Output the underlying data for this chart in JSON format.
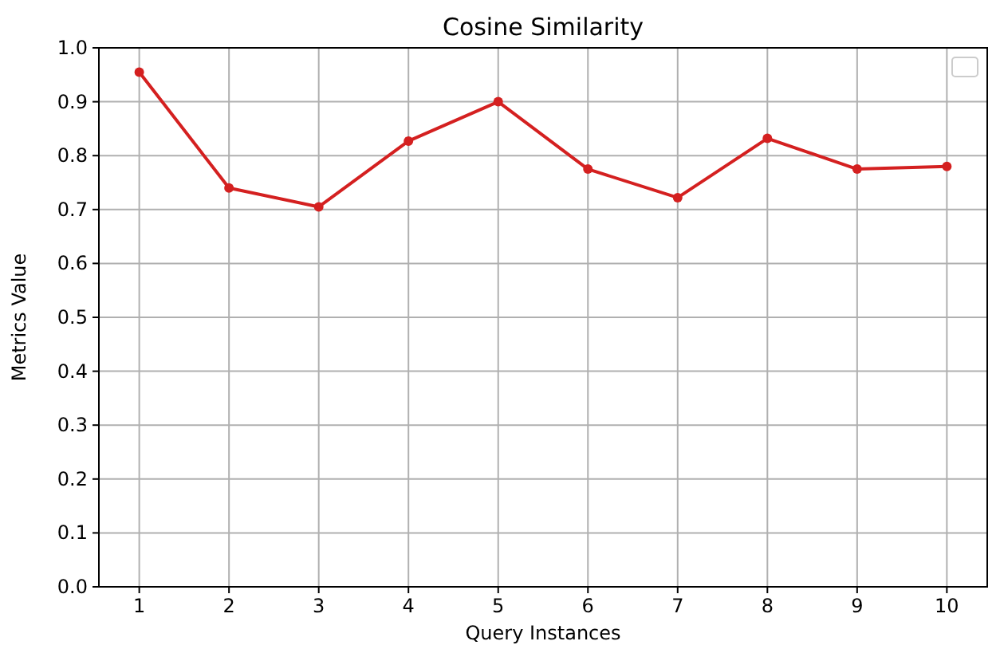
{
  "chart_data": {
    "type": "line",
    "title": "Cosine Similarity",
    "xlabel": "Query Instances",
    "ylabel": "Metrics Value",
    "x": [
      1,
      2,
      3,
      4,
      5,
      6,
      7,
      8,
      9,
      10
    ],
    "series": [
      {
        "color": "#d42020",
        "values": [
          0.955,
          0.74,
          0.705,
          0.827,
          0.9,
          0.775,
          0.722,
          0.832,
          0.775,
          0.78
        ]
      }
    ],
    "xlim": [
      0.55,
      10.45
    ],
    "xticks": [
      1,
      2,
      3,
      4,
      5,
      6,
      7,
      8,
      9,
      10
    ],
    "ylim": [
      0,
      1
    ],
    "yticks": [
      {
        "value": 0,
        "label": "0.0"
      },
      {
        "value": 0.1,
        "label": "0.1"
      },
      {
        "value": 0.2,
        "label": "0.2"
      },
      {
        "value": 0.3,
        "label": "0.3"
      },
      {
        "value": 0.4,
        "label": "0.4"
      },
      {
        "value": 0.5,
        "label": "0.5"
      },
      {
        "value": 0.6,
        "label": "0.6"
      },
      {
        "value": 0.7,
        "label": "0.7"
      },
      {
        "value": 0.8,
        "label": "0.8"
      },
      {
        "value": 0.9,
        "label": "0.9"
      },
      {
        "value": 1,
        "label": "1.0"
      }
    ],
    "grid": true,
    "marker": "circle",
    "line_style": "solid"
  }
}
